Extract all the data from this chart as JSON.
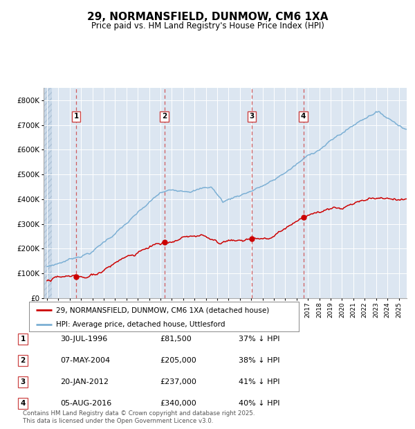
{
  "title": "29, NORMANSFIELD, DUNMOW, CM6 1XA",
  "subtitle": "Price paid vs. HM Land Registry's House Price Index (HPI)",
  "red_label": "29, NORMANSFIELD, DUNMOW, CM6 1XA (detached house)",
  "blue_label": "HPI: Average price, detached house, Uttlesford",
  "footer": "Contains HM Land Registry data © Crown copyright and database right 2025.\nThis data is licensed under the Open Government Licence v3.0.",
  "transactions": [
    {
      "num": 1,
      "date": "30-JUL-1996",
      "price": 81500,
      "pct": "37%",
      "x_year": 1996.58
    },
    {
      "num": 2,
      "date": "07-MAY-2004",
      "price": 205000,
      "pct": "38%",
      "x_year": 2004.35
    },
    {
      "num": 3,
      "date": "20-JAN-2012",
      "price": 237000,
      "pct": "41%",
      "x_year": 2012.05
    },
    {
      "num": 4,
      "date": "05-AUG-2016",
      "price": 340000,
      "pct": "40%",
      "x_year": 2016.59
    }
  ],
  "ylim": [
    0,
    850000
  ],
  "xlim_start": 1993.7,
  "xlim_end": 2025.7,
  "bg_color": "#dce6f1",
  "red_color": "#cc0000",
  "blue_color": "#7bafd4",
  "grid_color": "#ffffff",
  "dashed_color": "#cc4444",
  "hatch_end": 1994.45
}
